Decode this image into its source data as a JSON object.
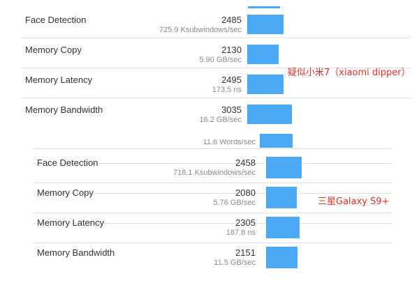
{
  "bar_color": "#4ba9f5",
  "label_color": "#e0302a",
  "panel_top": {
    "device_label": "疑似小米7（xiaomi dipper）",
    "rows": [
      {
        "name": "Face Detection",
        "score": "2485",
        "rate": "725.9 Ksubwindows/sec",
        "score_value": 2485
      },
      {
        "name": "Memory Copy",
        "score": "2130",
        "rate": "5.90 GB/sec",
        "score_value": 2130
      },
      {
        "name": "Memory Latency",
        "score": "2495",
        "rate": "173.5 ns",
        "score_value": 2495
      },
      {
        "name": "Memory Bandwidth",
        "score": "3035",
        "rate": "16.2 GB/sec",
        "score_value": 3035
      }
    ]
  },
  "panel_bottom": {
    "device_label": "三星Galaxy S9+",
    "cut_row_rate": "11.6 Words/sec",
    "rows": [
      {
        "name": "Face Detection",
        "score": "2458",
        "rate": "718.1 Ksubwindows/sec",
        "score_value": 2458
      },
      {
        "name": "Memory Copy",
        "score": "2080",
        "rate": "5.76 GB/sec",
        "score_value": 2080
      },
      {
        "name": "Memory Latency",
        "score": "2305",
        "rate": "187.8 ns",
        "score_value": 2305
      },
      {
        "name": "Memory Bandwidth",
        "score": "2151",
        "rate": "11.5 GB/sec",
        "score_value": 2151
      }
    ]
  }
}
